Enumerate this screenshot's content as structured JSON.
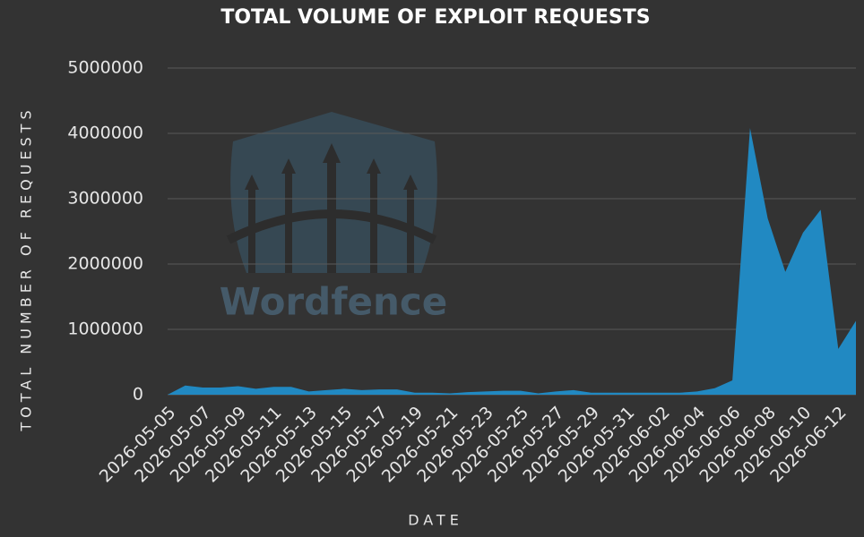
{
  "chart_data": {
    "type": "area",
    "title": "TOTAL VOLUME OF EXPLOIT REQUESTS",
    "x_label": "DATE",
    "y_label": "TOTAL NUMBER OF REQUESTS",
    "watermark": "Wordfence",
    "categories": [
      "2026-05-05",
      null,
      "2026-05-07",
      null,
      "2026-05-09",
      null,
      "2026-05-11",
      null,
      "2026-05-13",
      null,
      "2026-05-15",
      null,
      "2026-05-17",
      null,
      "2026-05-19",
      null,
      "2026-05-21",
      null,
      "2026-05-23",
      null,
      "2026-05-25",
      null,
      "2026-05-27",
      null,
      "2026-05-29",
      null,
      "2026-05-31",
      null,
      "2026-06-02",
      null,
      "2026-06-04",
      null,
      "2026-06-06",
      null,
      "2026-06-08",
      null,
      "2026-06-10",
      null,
      "2026-06-12",
      null
    ],
    "values": [
      0,
      140000,
      110000,
      110000,
      130000,
      90000,
      120000,
      120000,
      50000,
      70000,
      90000,
      70000,
      80000,
      80000,
      30000,
      30000,
      20000,
      40000,
      50000,
      60000,
      60000,
      20000,
      50000,
      70000,
      30000,
      30000,
      30000,
      30000,
      30000,
      30000,
      50000,
      100000,
      220000,
      4080000,
      2700000,
      1880000,
      2480000,
      2830000,
      700000,
      1130000
    ],
    "color": "#2189c2",
    "ylim": [
      0,
      5000000
    ],
    "yticks": [
      0,
      1000000,
      2000000,
      3000000,
      4000000,
      5000000
    ],
    "grid": true
  }
}
